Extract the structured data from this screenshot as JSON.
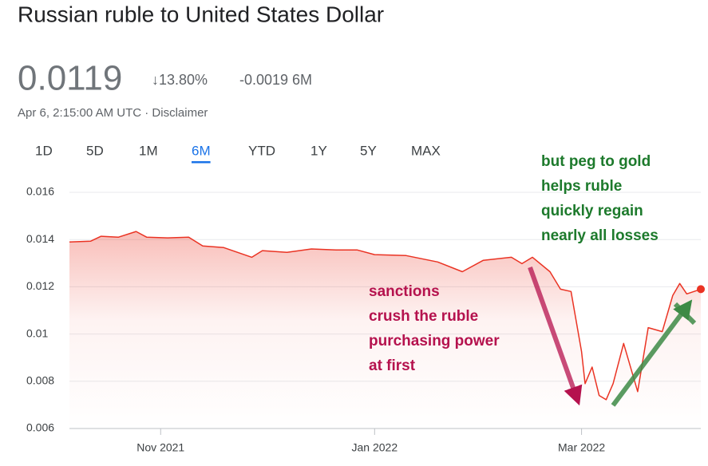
{
  "header": {
    "title": "Russian ruble to United States Dollar",
    "price": "0.0119",
    "change_percent": "↓13.80%",
    "change_value": "-0.0019 6M",
    "timestamp": "Apr 6, 2:15:00 AM UTC · Disclaimer"
  },
  "tabs": [
    "1D",
    "5D",
    "1M",
    "6M",
    "YTD",
    "1Y",
    "5Y",
    "MAX"
  ],
  "selected_tab_index": 3,
  "chart_data": {
    "type": "area-line",
    "color": "#ea3323",
    "x": [
      0,
      6,
      9,
      14,
      19,
      22,
      28,
      34,
      38,
      44,
      52,
      55,
      62,
      69,
      76,
      82,
      87,
      96,
      105,
      112,
      118,
      126,
      129,
      132,
      137,
      140,
      143,
      146,
      147,
      149,
      151,
      153,
      155,
      158,
      162,
      165,
      169,
      172,
      174,
      176,
      180
    ],
    "values": [
      0.0139,
      0.01393,
      0.01414,
      0.0141,
      0.01434,
      0.0141,
      0.01407,
      0.0141,
      0.01373,
      0.01366,
      0.01325,
      0.01353,
      0.01346,
      0.0136,
      0.01356,
      0.01356,
      0.01336,
      0.01332,
      0.01305,
      0.01264,
      0.01312,
      0.01325,
      0.01298,
      0.01325,
      0.01264,
      0.0119,
      0.0118,
      0.00925,
      0.0079,
      0.0086,
      0.0074,
      0.00722,
      0.0079,
      0.0096,
      0.00756,
      0.01027,
      0.0101,
      0.01163,
      0.01214,
      0.0117,
      0.0119
    ],
    "xlim": [
      0,
      180
    ],
    "xticks": [
      {
        "value": 26,
        "label": "Nov 2021"
      },
      {
        "value": 87,
        "label": "Jan 2022"
      },
      {
        "value": 146,
        "label": "Mar 2022"
      }
    ],
    "ylim": [
      0.006,
      0.016
    ],
    "yticks": [
      0.016,
      0.014,
      0.012,
      0.01,
      0.008,
      0.006
    ],
    "grid": true,
    "annotations": [
      {
        "lines": [
          "sanctions",
          "crush the ruble",
          "purchasing power",
          "at first"
        ],
        "color": "#b5124e"
      },
      {
        "lines": [
          "but peg to gold",
          "helps ruble",
          "quickly regain",
          "nearly all losses"
        ],
        "color": "#1d7a2c"
      }
    ]
  }
}
